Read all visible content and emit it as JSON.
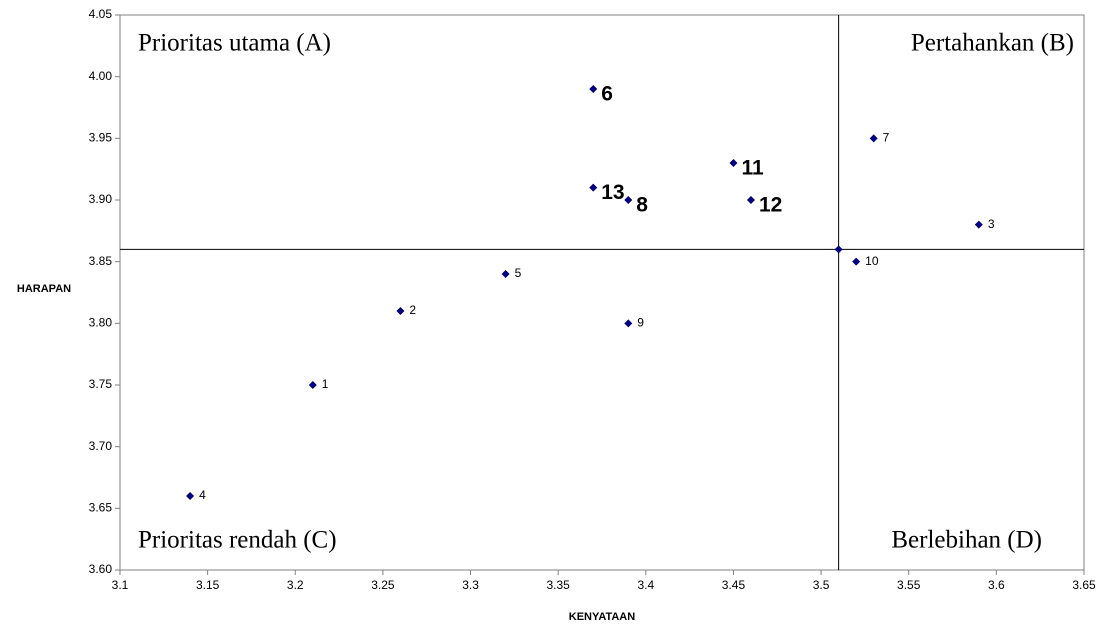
{
  "chart_data": {
    "type": "scatter",
    "x_label": "KENYATAAN",
    "y_label": "HARAPAN",
    "x": [
      3.21,
      3.26,
      3.59,
      3.14,
      3.32,
      3.37,
      3.53,
      3.39,
      3.39,
      3.52,
      3.45,
      3.46,
      3.37,
      3.51
    ],
    "y": [
      3.75,
      3.81,
      3.88,
      3.66,
      3.84,
      3.99,
      3.95,
      3.9,
      3.8,
      3.85,
      3.93,
      3.9,
      3.91,
      3.86
    ],
    "point_labels": [
      "1",
      "2",
      "3",
      "4",
      "5",
      "6",
      "7",
      "8",
      "9",
      "10",
      "11",
      "12",
      "13",
      null
    ],
    "bold_labels": [
      false,
      false,
      false,
      false,
      false,
      true,
      false,
      true,
      false,
      false,
      true,
      true,
      true,
      false
    ],
    "color": "#000080",
    "xlim": [
      3.1,
      3.65
    ],
    "ylim": [
      3.6,
      4.05
    ],
    "xticks": [
      3.1,
      3.15,
      3.2,
      3.25,
      3.3,
      3.35,
      3.4,
      3.45,
      3.5,
      3.55,
      3.6,
      3.65
    ],
    "yticks": [
      {
        "value": 3.6,
        "label": "3.60"
      },
      3.65,
      {
        "value": 3.7,
        "label": "3.70"
      },
      3.75,
      {
        "value": 3.8,
        "label": "3.80"
      },
      3.85,
      {
        "value": 3.9,
        "label": "3.90"
      },
      3.95,
      {
        "value": 4.0,
        "label": "4.00"
      },
      4.05
    ],
    "quadrant_x": 3.51,
    "quadrant_y": 3.86,
    "quadrant_labels": [
      "Prioritas utama (A)",
      "Pertahankan (B)",
      "Prioritas rendah (C)",
      "Berlebihan (D)"
    ]
  }
}
